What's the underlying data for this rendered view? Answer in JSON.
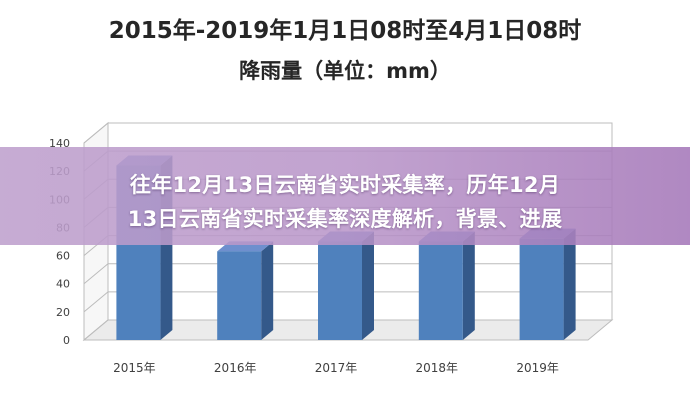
{
  "chart_data": {
    "type": "bar",
    "title": "2015年-2019年1月1日08时至4月1日08时",
    "subtitle": "降雨量（单位：mm）",
    "categories": [
      "2015年",
      "2016年",
      "2017年",
      "2018年",
      "2019年"
    ],
    "values": [
      124,
      63,
      70,
      70,
      72
    ],
    "ylim": [
      0,
      140
    ],
    "yticks": [
      0,
      20,
      40,
      60,
      80,
      100,
      120,
      140
    ],
    "grid": true,
    "style": "3d",
    "colors": {
      "bar_front": "#4f81bd",
      "bar_top": "#6e8fce",
      "bar_side": "#34598a",
      "grid": "#bcbcbc"
    }
  },
  "overlay": {
    "line1": "往年12月13日云南省实时采集率，历年12月",
    "line2": "13日云南省实时采集率深度解析，背景、进展"
  }
}
